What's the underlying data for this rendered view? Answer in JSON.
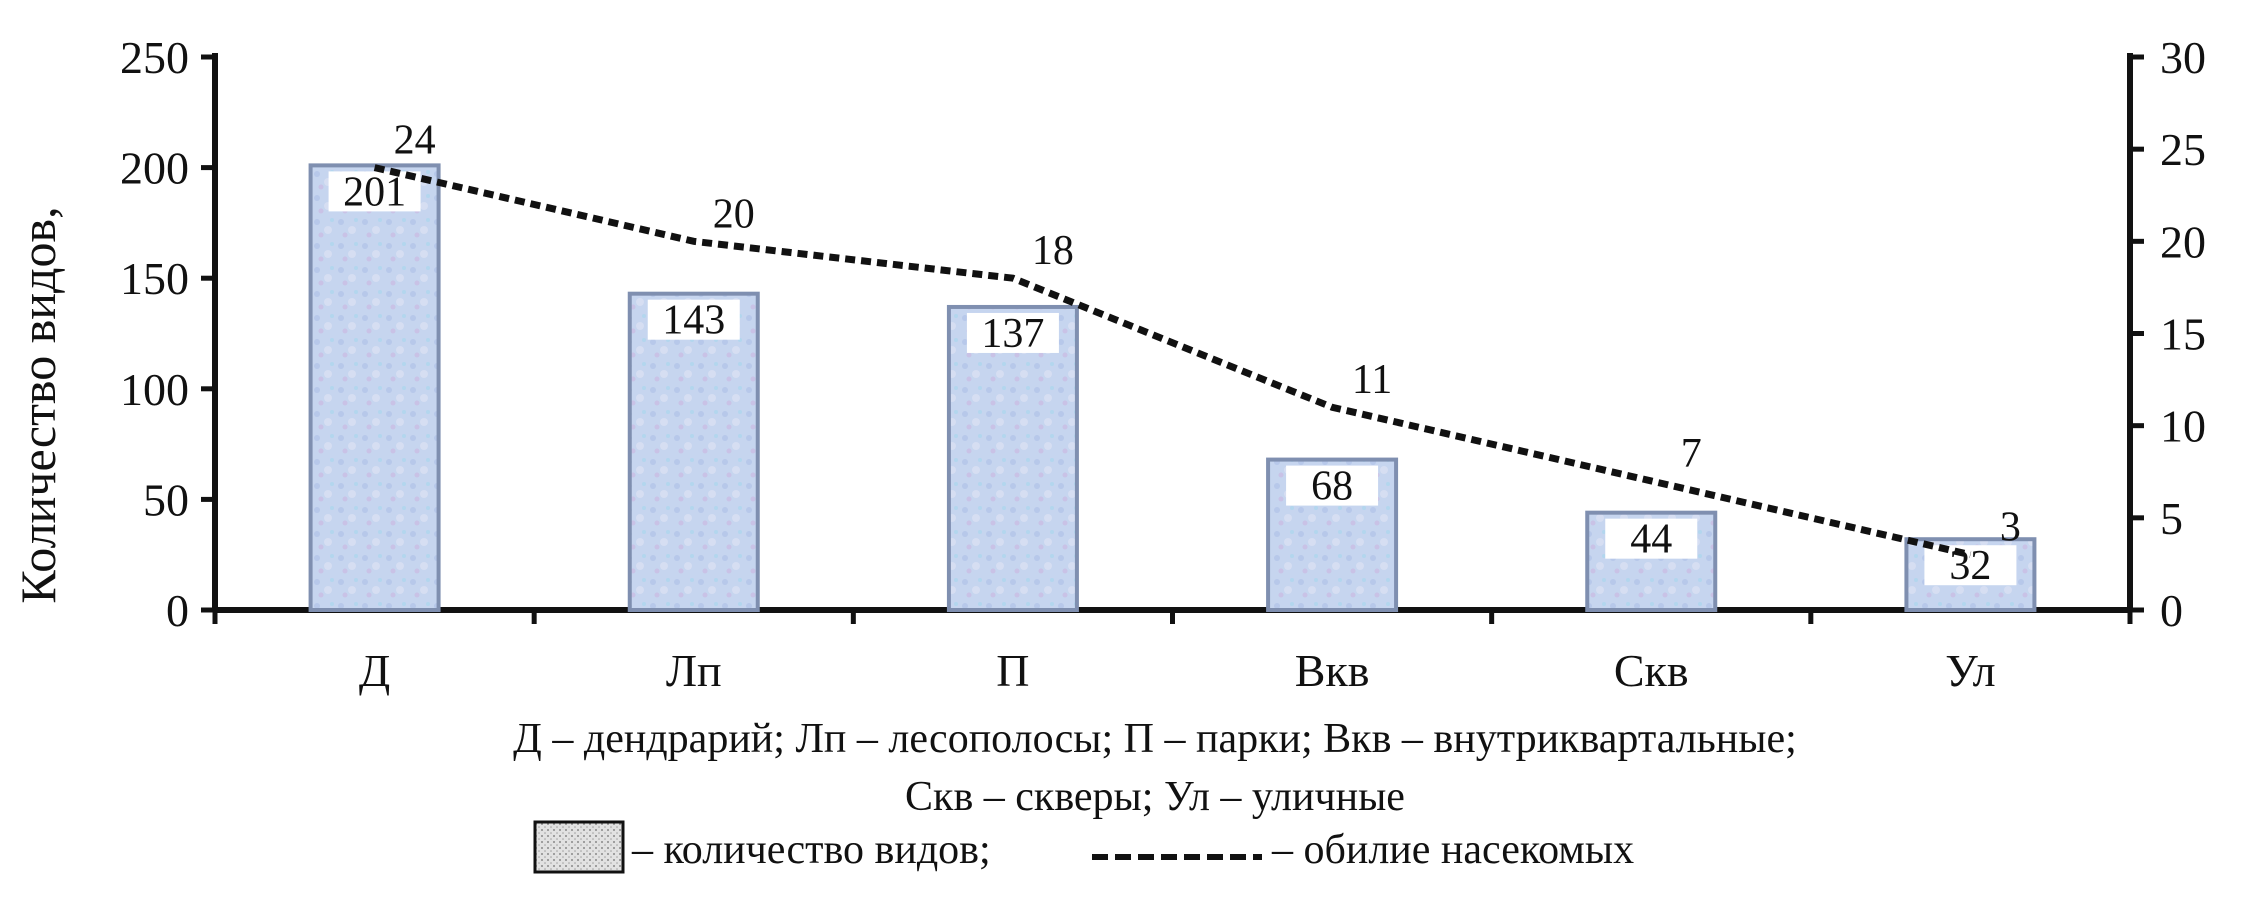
{
  "chart_data": {
    "type": "bar",
    "categories": [
      "Д",
      "Лп",
      "П",
      "Вкв",
      "Скв",
      "Ул"
    ],
    "series": [
      {
        "name": "количество видов",
        "type": "bar",
        "axis": "left",
        "values": [
          201,
          143,
          137,
          68,
          44,
          32
        ]
      },
      {
        "name": "обилие насекомых",
        "type": "line",
        "axis": "right",
        "values": [
          24,
          20,
          18,
          11,
          7,
          3
        ]
      }
    ],
    "ylabel": "Количество видов,",
    "ylim": [
      0,
      250
    ],
    "y_ticks": [
      0,
      50,
      100,
      150,
      200,
      250
    ],
    "y2lim": [
      0,
      30
    ],
    "y2_ticks": [
      0,
      5,
      10,
      15,
      20,
      25,
      30
    ],
    "grid": false,
    "legend": {
      "placement": "bottom",
      "bar_label": "– количество видов;",
      "line_label": "– обилие насекомых"
    },
    "caption_lines": [
      "Д – дендрарий; Лп – лесополосы; П – парки; Вкв – внутриквартальные;",
      "Скв – скверы; Ул – уличные"
    ],
    "colors": {
      "bar_fill": "#c4d4ee",
      "bar_stroke": "#7f8fb0",
      "line": "#111111",
      "axis": "#111111"
    }
  }
}
